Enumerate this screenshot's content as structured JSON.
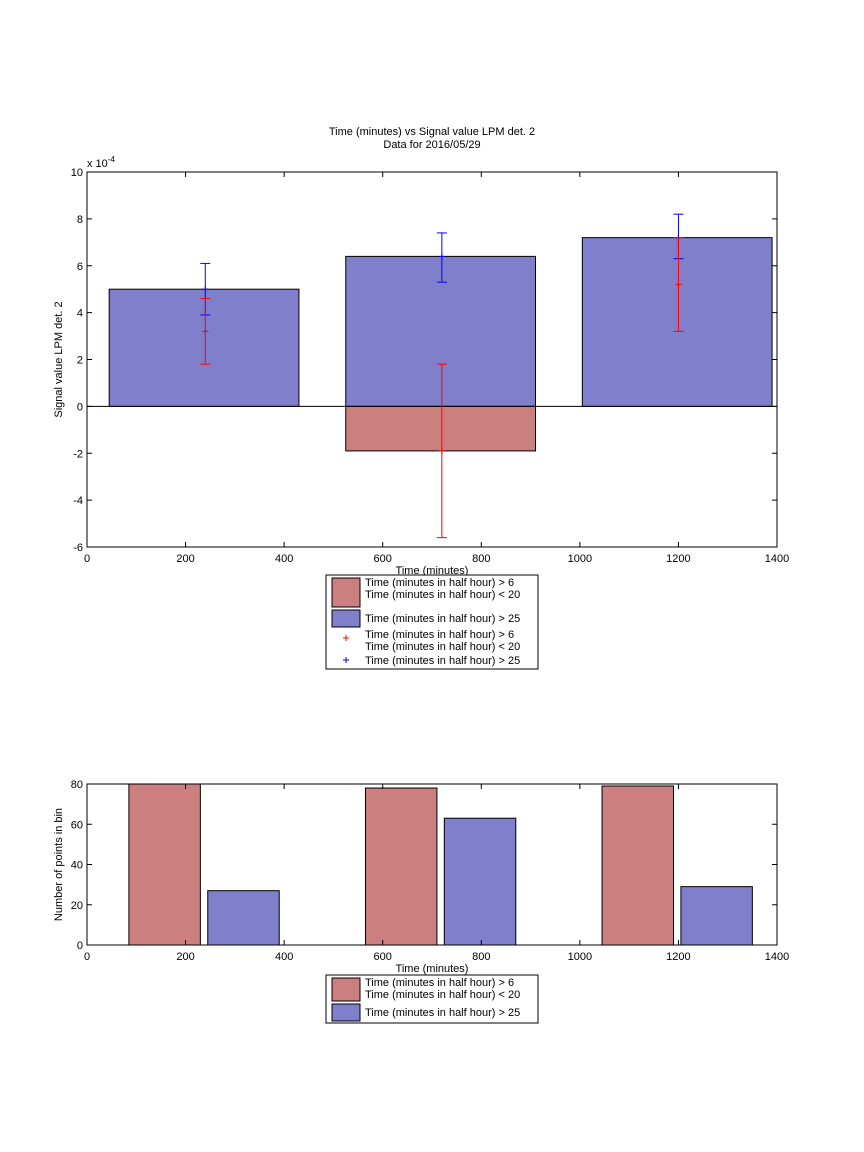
{
  "chart_data": [
    {
      "type": "bar",
      "title": "Time (minutes) vs Signal value LPM det. 2",
      "subtitle": "Data for 2016/05/29",
      "xlabel": "Time (minutes)",
      "ylabel": "Signal value LPM det. 2",
      "y_exponent_label": "x 10",
      "y_exponent_power": "-4",
      "xlim": [
        0,
        1400
      ],
      "ylim": [
        -6,
        10
      ],
      "xticks": [
        "0",
        "200",
        "400",
        "600",
        "800",
        "1000",
        "1200",
        "1400"
      ],
      "yticks": [
        "-6",
        "-4",
        "-2",
        "0",
        "2",
        "4",
        "6",
        "8",
        "10"
      ],
      "grid": false,
      "legend_position": "bottom-outside",
      "bars": [
        {
          "series": "blue",
          "x_start": 45,
          "x_end": 430,
          "value": 5.0
        },
        {
          "series": "blue",
          "x_start": 525,
          "x_end": 910,
          "value": 6.4
        },
        {
          "series": "red",
          "x_start": 525,
          "x_end": 910,
          "value": -1.9
        },
        {
          "series": "blue",
          "x_start": 1005,
          "x_end": 1390,
          "value": 7.2
        }
      ],
      "errorbars": [
        {
          "series": "blue",
          "x": 240,
          "center": 5.0,
          "low": 3.9,
          "high": 6.1
        },
        {
          "series": "red",
          "x": 240,
          "center": 3.2,
          "low": 1.8,
          "high": 4.6
        },
        {
          "series": "blue",
          "x": 720,
          "center": 6.4,
          "low": 5.3,
          "high": 7.4
        },
        {
          "series": "red",
          "x": 720,
          "center": -1.9,
          "low": -5.6,
          "high": 1.8
        },
        {
          "series": "blue",
          "x": 1200,
          "center": 7.2,
          "low": 6.3,
          "high": 8.2
        },
        {
          "series": "red",
          "x": 1200,
          "center": 5.2,
          "low": 3.2,
          "high": 7.2
        }
      ],
      "legend": [
        {
          "kind": "patch",
          "series": "red",
          "label": "Time (minutes in half hour) > 6\nTime (minutes in half hour) < 20"
        },
        {
          "kind": "patch",
          "series": "blue",
          "label": "Time (minutes in half hour) > 25"
        },
        {
          "kind": "marker",
          "series": "red",
          "label": "Time (minutes in half hour) > 6\nTime (minutes in half hour) < 20"
        },
        {
          "kind": "marker",
          "series": "blue",
          "label": "Time (minutes in half hour) > 25"
        }
      ],
      "colors": {
        "red_fill": "#cc7f7f",
        "blue_fill": "#7f7fcc",
        "red_err": "#ff0000",
        "blue_err": "#0000ff"
      }
    },
    {
      "type": "bar",
      "xlabel": "Time (minutes)",
      "ylabel": "Number of points in bin",
      "xlim": [
        0,
        1400
      ],
      "ylim": [
        0,
        80
      ],
      "xticks": [
        "0",
        "200",
        "400",
        "600",
        "800",
        "1000",
        "1200",
        "1400"
      ],
      "yticks": [
        "0",
        "20",
        "40",
        "60",
        "80"
      ],
      "grid": false,
      "legend_position": "bottom-outside",
      "bars": [
        {
          "series": "red",
          "x_start": 85,
          "x_end": 230,
          "value": 80
        },
        {
          "series": "blue",
          "x_start": 245,
          "x_end": 390,
          "value": 27
        },
        {
          "series": "red",
          "x_start": 565,
          "x_end": 710,
          "value": 78
        },
        {
          "series": "blue",
          "x_start": 725,
          "x_end": 870,
          "value": 63
        },
        {
          "series": "red",
          "x_start": 1045,
          "x_end": 1190,
          "value": 79
        },
        {
          "series": "blue",
          "x_start": 1205,
          "x_end": 1350,
          "value": 29
        }
      ],
      "legend": [
        {
          "kind": "patch",
          "series": "red",
          "label": "Time (minutes in half hour) > 6\nTime (minutes in half hour) < 20"
        },
        {
          "kind": "patch",
          "series": "blue",
          "label": "Time (minutes in half hour) > 25"
        }
      ],
      "colors": {
        "red_fill": "#cc7f7f",
        "blue_fill": "#7f7fcc"
      }
    }
  ]
}
